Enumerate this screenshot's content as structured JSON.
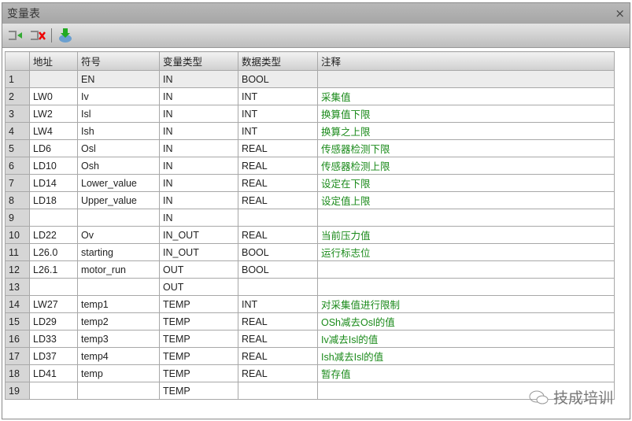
{
  "window": {
    "title": "变量表",
    "close": "×"
  },
  "toolbar": [
    {
      "icon": "insert-row-icon"
    },
    {
      "icon": "delete-row-icon"
    },
    {
      "icon": "import-icon"
    }
  ],
  "table": {
    "headers": [
      "",
      "地址",
      "符号",
      "变量类型",
      "数据类型",
      "注释"
    ],
    "rows": [
      [
        "1",
        "",
        "EN",
        "IN",
        "BOOL",
        ""
      ],
      [
        "2",
        "LW0",
        "Iv",
        "IN",
        "INT",
        "采集值"
      ],
      [
        "3",
        "LW2",
        "Isl",
        "IN",
        "INT",
        "换算值下限"
      ],
      [
        "4",
        "LW4",
        "Ish",
        "IN",
        "INT",
        "换算之上限"
      ],
      [
        "5",
        "LD6",
        "Osl",
        "IN",
        "REAL",
        "传感器检测下限"
      ],
      [
        "6",
        "LD10",
        "Osh",
        "IN",
        "REAL",
        "传感器检测上限"
      ],
      [
        "7",
        "LD14",
        "Lower_value",
        "IN",
        "REAL",
        "设定在下限"
      ],
      [
        "8",
        "LD18",
        "Upper_value",
        "IN",
        "REAL",
        "设定值上限"
      ],
      [
        "9",
        "",
        "",
        "IN",
        "",
        ""
      ],
      [
        "10",
        "LD22",
        "Ov",
        "IN_OUT",
        "REAL",
        "当前压力值"
      ],
      [
        "11",
        "L26.0",
        "starting",
        "IN_OUT",
        "BOOL",
        "运行标志位"
      ],
      [
        "12",
        "L26.1",
        "motor_run",
        "OUT",
        "BOOL",
        ""
      ],
      [
        "13",
        "",
        "",
        "OUT",
        "",
        ""
      ],
      [
        "14",
        "LW27",
        "temp1",
        "TEMP",
        "INT",
        "对采集值进行限制"
      ],
      [
        "15",
        "LD29",
        "temp2",
        "TEMP",
        "REAL",
        "OSh减去Osl的值"
      ],
      [
        "16",
        "LD33",
        "temp3",
        "TEMP",
        "REAL",
        "Iv减去Isl的值"
      ],
      [
        "17",
        "LD37",
        "temp4",
        "TEMP",
        "REAL",
        "Ish减去Isl的值"
      ],
      [
        "18",
        "LD41",
        "temp",
        "TEMP",
        "REAL",
        "暂存值"
      ],
      [
        "19",
        "",
        "",
        "TEMP",
        "",
        ""
      ]
    ]
  },
  "watermark": "技成培训",
  "colors": {
    "comment": "#1a8a1a",
    "title_bar": "#aaaaaa"
  }
}
